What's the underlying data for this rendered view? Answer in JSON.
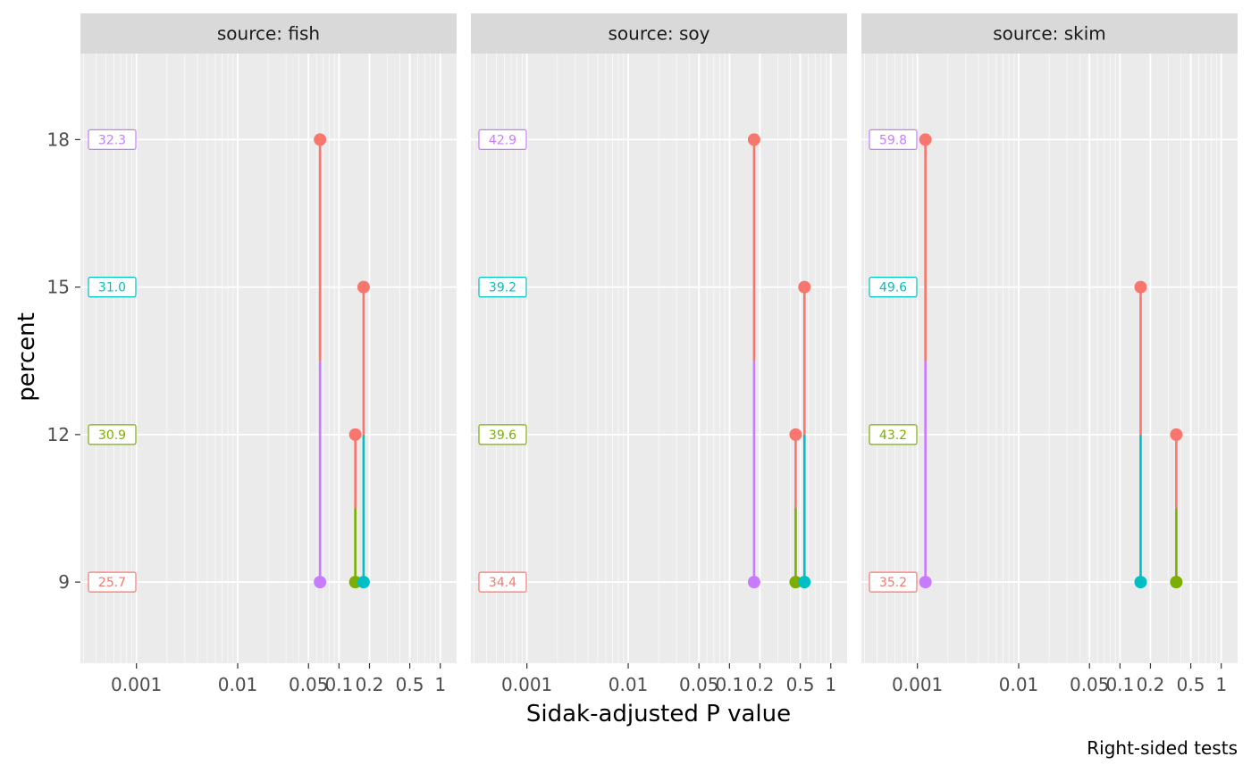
{
  "chart_data": {
    "type": "scatter",
    "subtype": "pairwise-p-value-plot",
    "xlabel": "Sidak-adjusted P value",
    "ylabel": "percent",
    "caption": "Right-sided tests",
    "x_scale": "log10",
    "xlim": [
      0.00028,
      1.45
    ],
    "x_ticks": [
      0.001,
      0.01,
      0.05,
      0.1,
      0.2,
      0.5,
      1
    ],
    "x_tick_labels": [
      "0.001",
      "0.01",
      "0.05",
      "0.1",
      "0.2",
      "0.5",
      "1"
    ],
    "ylim": [
      7.35,
      19.75
    ],
    "y_ticks": [
      9,
      12,
      15,
      18
    ],
    "y_tick_labels": [
      "9",
      "12",
      "15",
      "18"
    ],
    "grid": true,
    "legend": "none",
    "level_colors": {
      "9": "#F8766D",
      "12": "#7CAE00",
      "15": "#00BFC4",
      "18": "#C77CFF"
    },
    "panels": [
      {
        "strip": "source: fish",
        "estimates": [
          {
            "percent": 18,
            "label": "32.3"
          },
          {
            "percent": 15,
            "label": "31.0"
          },
          {
            "percent": 12,
            "label": "30.9"
          },
          {
            "percent": 9,
            "label": "25.7"
          }
        ],
        "comparisons": [
          {
            "from": 9,
            "to": 18,
            "p": 0.065
          },
          {
            "from": 9,
            "to": 12,
            "p": 0.145
          },
          {
            "from": 9,
            "to": 15,
            "p": 0.175
          }
        ]
      },
      {
        "strip": "source: soy",
        "estimates": [
          {
            "percent": 18,
            "label": "42.9"
          },
          {
            "percent": 15,
            "label": "39.2"
          },
          {
            "percent": 12,
            "label": "39.6"
          },
          {
            "percent": 9,
            "label": "34.4"
          }
        ],
        "comparisons": [
          {
            "from": 9,
            "to": 18,
            "p": 0.175
          },
          {
            "from": 9,
            "to": 12,
            "p": 0.45
          },
          {
            "from": 9,
            "to": 15,
            "p": 0.55
          }
        ]
      },
      {
        "strip": "source: skim",
        "estimates": [
          {
            "percent": 18,
            "label": "59.8"
          },
          {
            "percent": 15,
            "label": "49.6"
          },
          {
            "percent": 12,
            "label": "43.2"
          },
          {
            "percent": 9,
            "label": "35.2"
          }
        ],
        "comparisons": [
          {
            "from": 9,
            "to": 18,
            "p": 0.0012
          },
          {
            "from": 9,
            "to": 15,
            "p": 0.16
          },
          {
            "from": 9,
            "to": 12,
            "p": 0.36
          }
        ]
      }
    ]
  }
}
